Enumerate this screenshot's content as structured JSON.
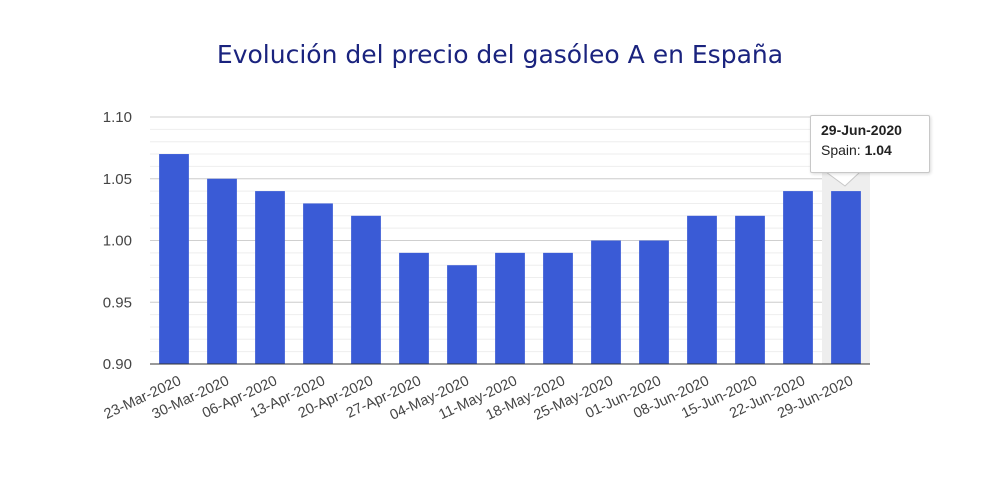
{
  "chart_data": {
    "type": "bar",
    "title": "Evolución del precio del gasóleo A en España",
    "categories": [
      "23-Mar-2020",
      "30-Mar-2020",
      "06-Apr-2020",
      "13-Apr-2020",
      "20-Apr-2020",
      "27-Apr-2020",
      "04-May-2020",
      "11-May-2020",
      "18-May-2020",
      "25-May-2020",
      "01-Jun-2020",
      "08-Jun-2020",
      "15-Jun-2020",
      "22-Jun-2020",
      "29-Jun-2020"
    ],
    "series": [
      {
        "name": "Spain",
        "values": [
          1.07,
          1.05,
          1.04,
          1.03,
          1.02,
          0.99,
          0.98,
          0.99,
          0.99,
          1.0,
          1.0,
          1.02,
          1.02,
          1.04,
          1.04
        ]
      }
    ],
    "ylim": [
      0.9,
      1.1
    ],
    "yticks": [
      "0.90",
      "0.95",
      "1.00",
      "1.05",
      "1.10"
    ],
    "grid": true,
    "bar_color": "#3a5bd6",
    "highlight_index": 14
  },
  "tooltip": {
    "date": "29-Jun-2020",
    "label": "Spain: ",
    "value": "1.04"
  }
}
